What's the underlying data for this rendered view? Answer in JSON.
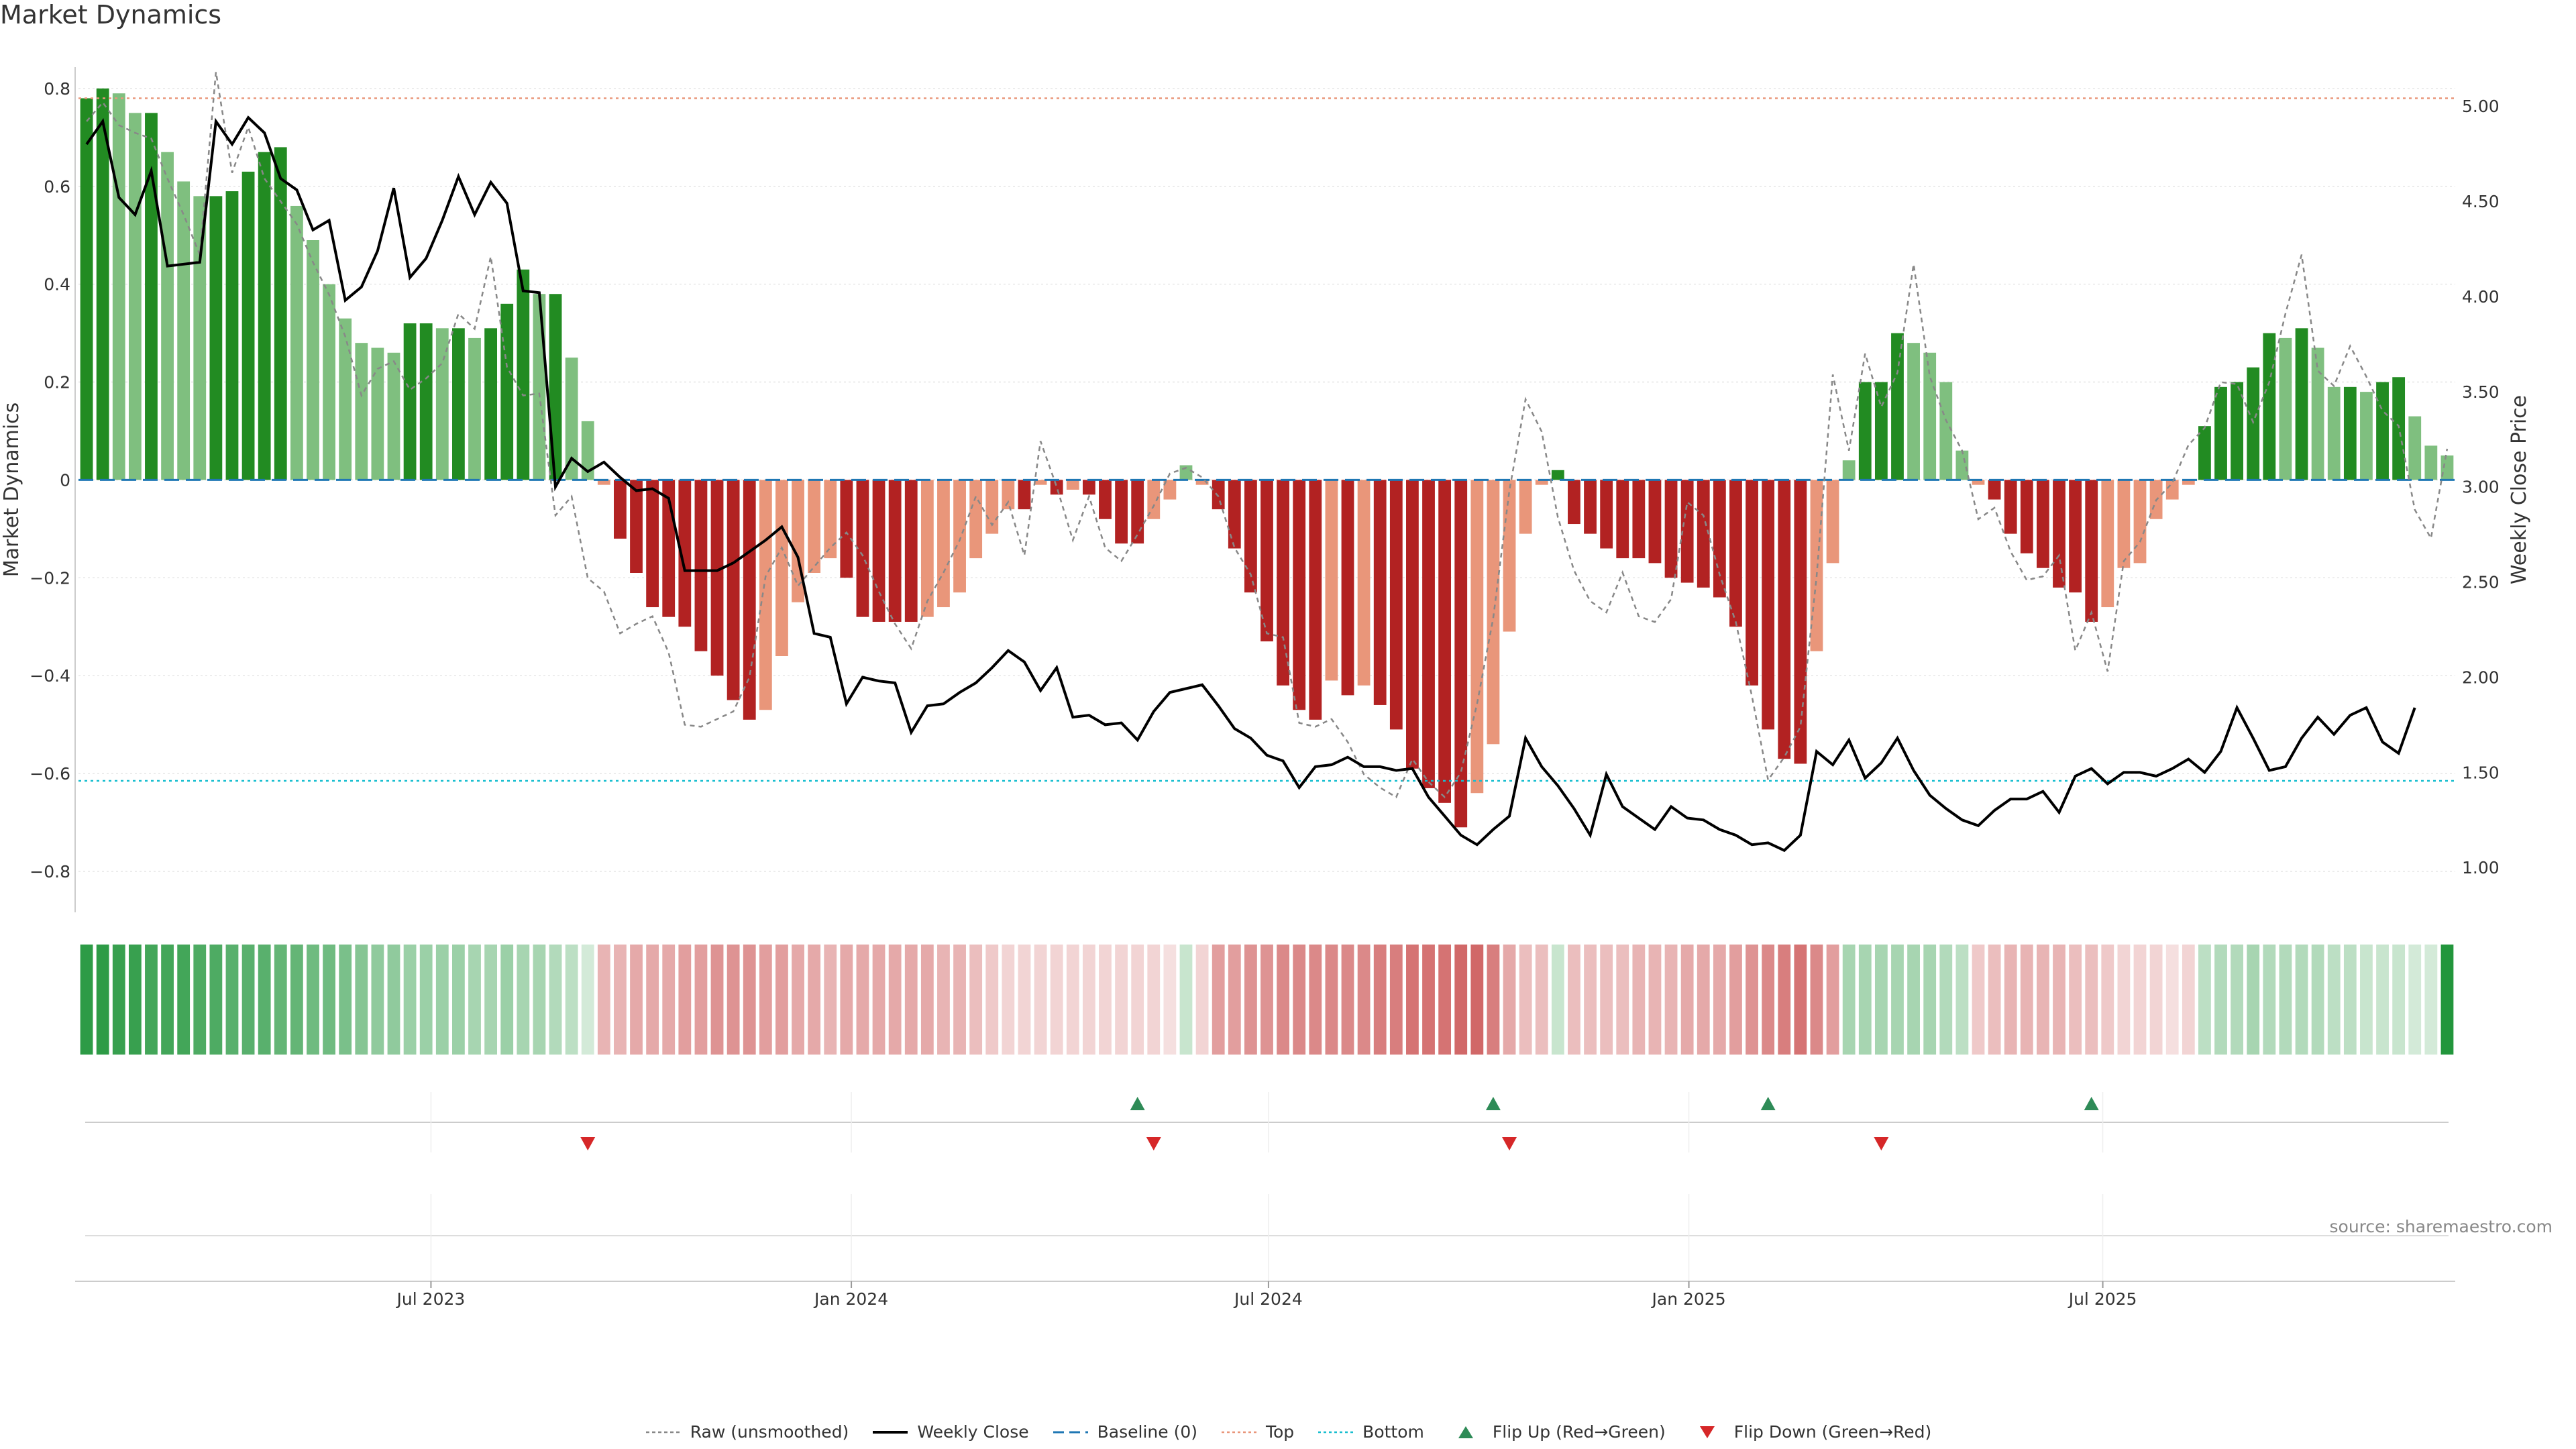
{
  "title": "Market Dynamics",
  "source": "source: sharemaestro.com",
  "chart_data": {
    "type": "bar",
    "ylabel": "Market Dynamics",
    "y2label": "Weekly Close Price",
    "ylim": [
      -0.87,
      0.83
    ],
    "y2lim": [
      0.8,
      5.17
    ],
    "yticks": [
      "0.8",
      "0.6",
      "0.4",
      "0.2",
      "0",
      "−0.2",
      "−0.4",
      "−0.6",
      "−0.8"
    ],
    "ytick_values": [
      0.8,
      0.6,
      0.4,
      0.2,
      0,
      -0.2,
      -0.4,
      -0.6,
      -0.8
    ],
    "y2ticks": [
      "5.00",
      "4.50",
      "4.00",
      "3.50",
      "3.00",
      "2.50",
      "2.00",
      "1.50",
      "1.00"
    ],
    "y2tick_values": [
      5.0,
      4.5,
      4.0,
      3.5,
      3.0,
      2.5,
      2.0,
      1.5,
      1.0
    ],
    "top_line": 0.78,
    "bottom_line": -0.615,
    "baseline": 0,
    "xticks": [
      "Jul 2023",
      "Jan 2024",
      "Jul 2024",
      "Jan 2025",
      "Jul 2025"
    ],
    "xtick_index": [
      21.8,
      47.8,
      73.6,
      99.6,
      125.2
    ],
    "values": [
      0.78,
      0.8,
      0.79,
      0.75,
      0.75,
      0.67,
      0.61,
      0.58,
      0.58,
      0.59,
      0.63,
      0.67,
      0.68,
      0.56,
      0.49,
      0.4,
      0.33,
      0.28,
      0.27,
      0.26,
      0.32,
      0.32,
      0.31,
      0.31,
      0.29,
      0.31,
      0.36,
      0.43,
      0.38,
      0.38,
      0.25,
      0.12,
      -0.01,
      -0.12,
      -0.19,
      -0.26,
      -0.28,
      -0.3,
      -0.35,
      -0.4,
      -0.45,
      -0.49,
      -0.47,
      -0.36,
      -0.25,
      -0.19,
      -0.16,
      -0.2,
      -0.28,
      -0.29,
      -0.29,
      -0.29,
      -0.28,
      -0.26,
      -0.23,
      -0.16,
      -0.11,
      -0.06,
      -0.06,
      -0.01,
      -0.03,
      -0.02,
      -0.03,
      -0.08,
      -0.13,
      -0.13,
      -0.08,
      -0.04,
      0.03,
      -0.01,
      -0.06,
      -0.14,
      -0.23,
      -0.33,
      -0.42,
      -0.47,
      -0.49,
      -0.41,
      -0.44,
      -0.42,
      -0.46,
      -0.51,
      -0.59,
      -0.63,
      -0.66,
      -0.71,
      -0.64,
      -0.54,
      -0.31,
      -0.11,
      -0.01,
      0.02,
      -0.09,
      -0.11,
      -0.14,
      -0.16,
      -0.16,
      -0.17,
      -0.2,
      -0.21,
      -0.22,
      -0.24,
      -0.3,
      -0.42,
      -0.51,
      -0.57,
      -0.58,
      -0.35,
      -0.17,
      0.04,
      0.2,
      0.2,
      0.3,
      0.28,
      0.26,
      0.2,
      0.06,
      -0.01,
      -0.04,
      -0.11,
      -0.15,
      -0.18,
      -0.22,
      -0.23,
      -0.29,
      -0.26,
      -0.18,
      -0.17,
      -0.08,
      -0.04,
      -0.01,
      0.11,
      0.19,
      0.2,
      0.23,
      0.3,
      0.29,
      0.31,
      0.27,
      0.19,
      0.19,
      0.18,
      0.2,
      0.21,
      0.13,
      0.07,
      0.05
    ],
    "weekly_close": [
      4.8,
      4.92,
      4.52,
      4.43,
      4.66,
      4.16,
      4.17,
      4.18,
      4.92,
      4.8,
      4.94,
      4.86,
      4.62,
      4.56,
      4.35,
      4.4,
      3.98,
      4.05,
      4.24,
      4.57,
      4.1,
      4.2,
      4.4,
      4.63,
      4.43,
      4.6,
      4.49,
      4.03,
      4.02,
      3.0,
      3.15,
      3.08,
      3.13,
      3.05,
      2.98,
      2.99,
      2.94,
      2.56,
      2.56,
      2.56,
      2.6,
      2.66,
      2.72,
      2.79,
      2.63,
      2.23,
      2.21,
      1.86,
      2.0,
      1.98,
      1.97,
      1.71,
      1.85,
      1.86,
      1.92,
      1.97,
      2.05,
      2.14,
      2.08,
      1.93,
      2.05,
      1.79,
      1.8,
      1.75,
      1.76,
      1.67,
      1.82,
      1.92,
      1.94,
      1.96,
      1.85,
      1.73,
      1.68,
      1.59,
      1.56,
      1.42,
      1.53,
      1.54,
      1.58,
      1.53,
      1.53,
      1.51,
      1.52,
      1.37,
      1.27,
      1.17,
      1.12,
      1.2,
      1.27,
      1.68,
      1.53,
      1.43,
      1.31,
      1.17,
      1.49,
      1.32,
      1.26,
      1.2,
      1.32,
      1.26,
      1.25,
      1.2,
      1.17,
      1.12,
      1.13,
      1.09,
      1.17,
      1.61,
      1.54,
      1.67,
      1.47,
      1.55,
      1.68,
      1.51,
      1.38,
      1.31,
      1.25,
      1.22,
      1.3,
      1.36,
      1.36,
      1.4,
      1.29,
      1.48,
      1.52,
      1.44,
      1.5,
      1.5,
      1.48,
      1.52,
      1.57,
      1.5,
      1.61,
      1.84,
      1.68,
      1.51,
      1.53,
      1.68,
      1.79,
      1.7,
      1.8,
      1.84,
      1.66,
      1.6,
      1.84
    ],
    "raw_price": [
      4.92,
      5.02,
      4.9,
      4.86,
      4.83,
      4.62,
      4.43,
      4.22,
      5.18,
      4.65,
      4.89,
      4.62,
      4.5,
      4.38,
      4.18,
      4.01,
      3.79,
      3.48,
      3.62,
      3.66,
      3.51,
      3.57,
      3.65,
      3.91,
      3.83,
      4.21,
      3.63,
      3.48,
      3.49,
      2.85,
      2.95,
      2.52,
      2.45,
      2.23,
      2.28,
      2.32,
      2.13,
      1.75,
      1.74,
      1.78,
      1.82,
      2.0,
      2.53,
      2.68,
      2.48,
      2.58,
      2.68,
      2.76,
      2.64,
      2.45,
      2.28,
      2.15,
      2.4,
      2.55,
      2.72,
      2.95,
      2.8,
      2.92,
      2.64,
      3.24,
      3.0,
      2.72,
      2.95,
      2.68,
      2.61,
      2.75,
      2.9,
      3.07,
      3.1,
      3.05,
      2.95,
      2.68,
      2.54,
      2.23,
      2.21,
      1.76,
      1.74,
      1.78,
      1.66,
      1.49,
      1.42,
      1.37,
      1.57,
      1.45,
      1.37,
      1.5,
      1.86,
      2.31,
      2.98,
      3.46,
      3.29,
      2.84,
      2.56,
      2.4,
      2.34,
      2.55,
      2.32,
      2.29,
      2.41,
      2.92,
      2.85,
      2.54,
      2.29,
      1.9,
      1.46,
      1.58,
      1.74,
      2.53,
      3.59,
      3.19,
      3.7,
      3.42,
      3.6,
      4.17,
      3.58,
      3.35,
      3.19,
      2.83,
      2.89,
      2.66,
      2.51,
      2.53,
      2.64,
      2.14,
      2.34,
      2.03,
      2.61,
      2.71,
      2.93,
      3.02,
      3.22,
      3.31,
      3.55,
      3.54,
      3.34,
      3.55,
      3.91,
      4.22,
      3.61,
      3.53,
      3.74,
      3.58,
      3.4,
      3.32,
      2.88,
      2.73,
      3.2
    ],
    "shade_strength": [
      0.95,
      0.95,
      0.9,
      0.9,
      0.85,
      0.85,
      0.85,
      0.8,
      0.8,
      0.75,
      0.75,
      0.75,
      0.7,
      0.7,
      0.65,
      0.65,
      0.6,
      0.55,
      0.5,
      0.5,
      0.45,
      0.45,
      0.45,
      0.45,
      0.4,
      0.4,
      0.45,
      0.4,
      0.4,
      0.35,
      0.3,
      0.2,
      0.35,
      0.35,
      0.4,
      0.4,
      0.4,
      0.45,
      0.45,
      0.5,
      0.5,
      0.5,
      0.45,
      0.45,
      0.4,
      0.4,
      0.35,
      0.4,
      0.4,
      0.4,
      0.4,
      0.4,
      0.4,
      0.35,
      0.35,
      0.3,
      0.25,
      0.2,
      0.2,
      0.2,
      0.2,
      0.2,
      0.2,
      0.2,
      0.2,
      0.2,
      0.2,
      0.15,
      0.25,
      0.2,
      0.45,
      0.45,
      0.5,
      0.5,
      0.55,
      0.55,
      0.55,
      0.55,
      0.55,
      0.55,
      0.6,
      0.6,
      0.65,
      0.65,
      0.65,
      0.7,
      0.7,
      0.6,
      0.4,
      0.3,
      0.3,
      0.25,
      0.3,
      0.3,
      0.3,
      0.3,
      0.35,
      0.35,
      0.35,
      0.4,
      0.4,
      0.4,
      0.45,
      0.5,
      0.55,
      0.6,
      0.65,
      0.55,
      0.45,
      0.4,
      0.4,
      0.4,
      0.4,
      0.4,
      0.4,
      0.35,
      0.3,
      0.25,
      0.3,
      0.35,
      0.35,
      0.35,
      0.35,
      0.3,
      0.3,
      0.25,
      0.2,
      0.2,
      0.2,
      0.15,
      0.2,
      0.3,
      0.35,
      0.35,
      0.4,
      0.35,
      0.35,
      0.35,
      0.35,
      0.3,
      0.3,
      0.25,
      0.25,
      0.25,
      0.2,
      0.2
    ],
    "flip_up_index": [
      65,
      87,
      104,
      124
    ],
    "flip_down_index": [
      31,
      66,
      88,
      111
    ],
    "colors": {
      "pos_strong": "#228b22",
      "pos_light": "#7fbf7f",
      "neg_strong": "#b22222",
      "neg_light": "#e9967a",
      "raw": "#888888",
      "close": "#000000",
      "baseline": "#1f77b4",
      "top": "#e9967a",
      "bottom": "#17becf",
      "flip_up": "#2e8b57",
      "flip_down": "#d62728"
    },
    "legend": [
      {
        "label": "Raw (unsmoothed)",
        "style": "raw"
      },
      {
        "label": "Weekly Close",
        "style": "close"
      },
      {
        "label": "Baseline (0)",
        "style": "baseline"
      },
      {
        "label": "Top",
        "style": "top"
      },
      {
        "label": "Bottom",
        "style": "bottom"
      },
      {
        "label": "Flip Up (Red→Green)",
        "style": "flip_up"
      },
      {
        "label": "Flip Down (Green→Red)",
        "style": "flip_down"
      }
    ]
  }
}
